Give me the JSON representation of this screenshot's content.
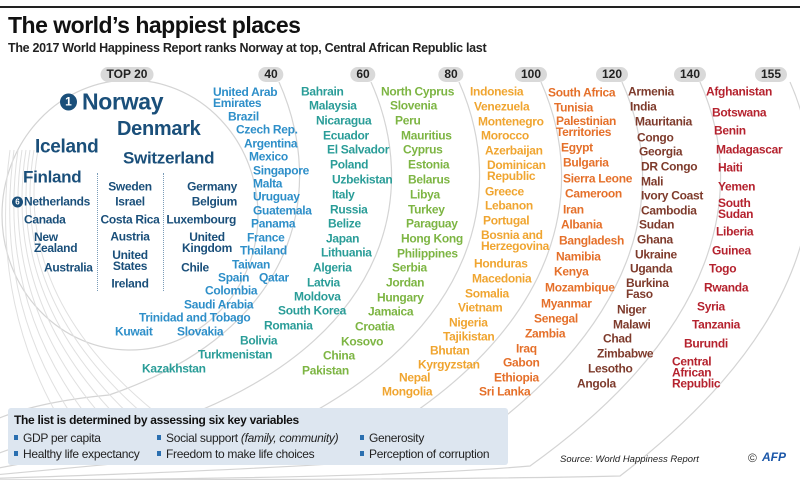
{
  "header": {
    "title": "The world’s happiest places",
    "subtitle": "The 2017 World Happiness Report ranks Norway at top, Central African Republic last"
  },
  "milestones": [
    "TOP 20",
    "40",
    "60",
    "80",
    "100",
    "120",
    "140",
    "155"
  ],
  "rank_badges": [
    "1",
    "6"
  ],
  "groups": [
    {
      "range": "1-20",
      "color": "#1a4f7a",
      "countries": [
        "Norway",
        "Denmark",
        "Iceland",
        "Switzerland",
        "Finland",
        "Netherlands",
        "Canada",
        "New\nZealand",
        "Australia",
        "Sweden",
        "Israel",
        "Costa Rica",
        "Austria",
        "United\nStates",
        "Ireland",
        "Germany",
        "Belgium",
        "Luxembourg",
        "United\nKingdom",
        "Chile"
      ]
    },
    {
      "range": "21-40",
      "color": "#2e8fc9",
      "countries": [
        "United Arab\nEmirates",
        "Brazil",
        "Czech Rep.",
        "Argentina",
        "Mexico",
        "Singapore",
        "Malta",
        "Uruguay",
        "Guatemala",
        "Panama",
        "France",
        "Thailand",
        "Taiwan",
        "Spain",
        "Qatar",
        "Colombia",
        "Saudi Arabia",
        "Trinidad and Tobago",
        "Kuwait",
        "Slovakia"
      ]
    },
    {
      "range": "41-60",
      "color": "#2a9d98",
      "countries": [
        "Bahrain",
        "Malaysia",
        "Nicaragua",
        "Ecuador",
        "El Salvador",
        "Poland",
        "Uzbekistan",
        "Italy",
        "Russia",
        "Belize",
        "Japan",
        "Lithuania",
        "Algeria",
        "Latvia",
        "Moldova",
        "South Korea",
        "Romania",
        "Bolivia",
        "Turkmenistan",
        "Kazakhstan"
      ]
    },
    {
      "range": "61-80",
      "color": "#7db543",
      "countries": [
        "North Cyprus",
        "Slovenia",
        "Peru",
        "Mauritius",
        "Cyprus",
        "Estonia",
        "Belarus",
        "Libya",
        "Turkey",
        "Paraguay",
        "Hong Kong",
        "Philippines",
        "Serbia",
        "Jordan",
        "Hungary",
        "Jamaica",
        "Croatia",
        "Kosovo",
        "China",
        "Pakistan"
      ]
    },
    {
      "range": "81-100",
      "color": "#f0a530",
      "countries": [
        "Indonesia",
        "Venezuela",
        "Montenegro",
        "Morocco",
        "Azerbaijan",
        "Dominican\nRepublic",
        "Greece",
        "Lebanon",
        "Portugal",
        "Bosnia and\nHerzegovina",
        "Honduras",
        "Macedonia",
        "Somalia",
        "Vietnam",
        "Nigeria",
        "Tajikistan",
        "Bhutan",
        "Kyrgyzstan",
        "Nepal",
        "Mongolia"
      ]
    },
    {
      "range": "101-120",
      "color": "#e5702a",
      "countries": [
        "South Africa",
        "Tunisia",
        "Palestinian\nTerritories",
        "Egypt",
        "Bulgaria",
        "Sierra Leone",
        "Cameroon",
        "Iran",
        "Albania",
        "Bangladesh",
        "Namibia",
        "Kenya",
        "Mozambique",
        "Myanmar",
        "Senegal",
        "Zambia",
        "Iraq",
        "Gabon",
        "Ethiopia",
        "Sri Lanka"
      ]
    },
    {
      "range": "121-140",
      "color": "#7e3b2c",
      "countries": [
        "Armenia",
        "India",
        "Mauritania",
        "Congo",
        "Georgia",
        "DR Congo",
        "Mali",
        "Ivory Coast",
        "Cambodia",
        "Sudan",
        "Ghana",
        "Ukraine",
        "Uganda",
        "Burkina\nFaso",
        "Niger",
        "Malawi",
        "Chad",
        "Zimbabwe",
        "Lesotho",
        "Angola"
      ]
    },
    {
      "range": "141-155",
      "color": "#b5222e",
      "countries": [
        "Afghanistan",
        "Botswana",
        "Benin",
        "Madagascar",
        "Haiti",
        "Yemen",
        "South\nSudan",
        "Liberia",
        "Guinea",
        "Togo",
        "Rwanda",
        "Syria",
        "Tanzania",
        "Burundi",
        "Central\nAfrican\nRepublic"
      ]
    }
  ],
  "variables_panel": {
    "title": "The list is determined by assessing six key variables",
    "items": [
      "GDP per capita",
      "Healthy life expectancy",
      "Social support",
      "(family, community)",
      "Freedom to make life choices",
      "Generosity",
      "Perception of corruption"
    ]
  },
  "footer": {
    "source": "Source: World Happiness Report",
    "copyright": "©",
    "logo_text": "AFP"
  }
}
